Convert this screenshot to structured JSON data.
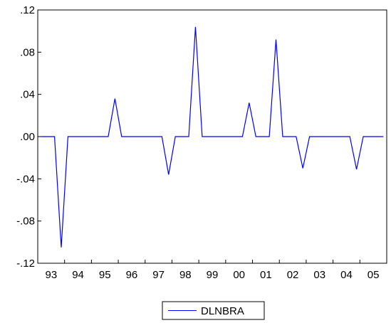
{
  "chart_data": {
    "type": "line",
    "title": "",
    "xlabel": "",
    "ylabel": "",
    "x_tick_labels": [
      "93",
      "94",
      "95",
      "96",
      "97",
      "98",
      "99",
      "00",
      "01",
      "02",
      "03",
      "04",
      "05"
    ],
    "y_tick_labels": [
      ".12",
      ".08",
      ".04",
      ".00",
      "-.04",
      "-.08",
      "-.12"
    ],
    "y_ticks": [
      0.12,
      0.08,
      0.04,
      0.0,
      -0.04,
      -0.08,
      -0.12
    ],
    "xlim": [
      1993,
      2006
    ],
    "ylim": [
      -0.12,
      0.12
    ],
    "grid": false,
    "legend_position": "bottom-center",
    "series": [
      {
        "name": "DLNBRA",
        "color": "#0000ff",
        "x": [
          "1993Q1",
          "1993Q2",
          "1993Q3",
          "1993Q4",
          "1994Q1",
          "1994Q2",
          "1994Q3",
          "1994Q4",
          "1995Q1",
          "1995Q2",
          "1995Q3",
          "1995Q4",
          "1996Q1",
          "1996Q2",
          "1996Q3",
          "1996Q4",
          "1997Q1",
          "1997Q2",
          "1997Q3",
          "1997Q4",
          "1998Q1",
          "1998Q2",
          "1998Q3",
          "1998Q4",
          "1999Q1",
          "1999Q2",
          "1999Q3",
          "1999Q4",
          "2000Q1",
          "2000Q2",
          "2000Q3",
          "2000Q4",
          "2001Q1",
          "2001Q2",
          "2001Q3",
          "2001Q4",
          "2002Q1",
          "2002Q2",
          "2002Q3",
          "2002Q4",
          "2003Q1",
          "2003Q2",
          "2003Q3",
          "2003Q4",
          "2004Q1",
          "2004Q2",
          "2004Q3",
          "2004Q4",
          "2005Q1",
          "2005Q2",
          "2005Q3",
          "2005Q4"
        ],
        "values": [
          0.0,
          0.0,
          0.0,
          -0.105,
          0.0,
          0.0,
          0.0,
          0.0,
          0.0,
          0.0,
          0.0,
          0.036,
          0.0,
          0.0,
          0.0,
          0.0,
          0.0,
          0.0,
          0.0,
          -0.036,
          0.0,
          0.0,
          0.0,
          0.104,
          0.0,
          0.0,
          0.0,
          0.0,
          0.0,
          0.0,
          0.0,
          0.032,
          0.0,
          0.0,
          0.0,
          0.092,
          0.0,
          0.0,
          0.0,
          -0.03,
          0.0,
          0.0,
          0.0,
          0.0,
          0.0,
          0.0,
          0.0,
          -0.031,
          0.0,
          0.0,
          0.0,
          0.0
        ]
      }
    ]
  }
}
